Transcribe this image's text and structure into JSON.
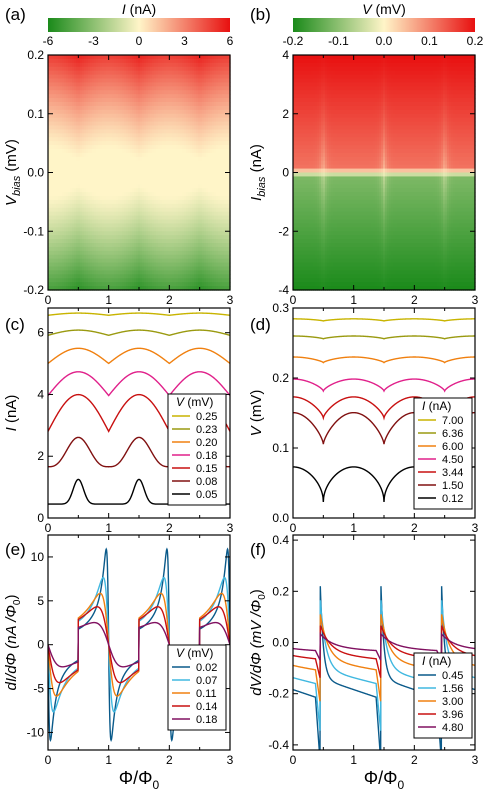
{
  "chart_data": [
    {
      "id": "a",
      "type": "heatmap",
      "panel_label": "(a)",
      "colorbar": {
        "label_var": "I",
        "label_unit": " (nA)",
        "min": -6,
        "max": 6,
        "ticks": [
          "-6",
          "-3",
          "0",
          "3",
          "6"
        ],
        "colors": [
          "#1a8a1a",
          "#fff5c8",
          "#e81010"
        ]
      },
      "xlim": [
        0,
        3
      ],
      "ylim": [
        -0.2,
        0.2
      ],
      "xticks": [
        "0",
        "1",
        "2",
        "3"
      ],
      "yticks": [
        "-0.2",
        "-0.1",
        "0.0",
        "0.1",
        "0.2"
      ],
      "ylabel_var": "V",
      "ylabel_sub": "bias",
      "ylabel_unit": " (mV)"
    },
    {
      "id": "b",
      "type": "heatmap",
      "panel_label": "(b)",
      "colorbar": {
        "label_var": "V",
        "label_unit": " (mV)",
        "min": -0.2,
        "max": 0.2,
        "ticks": [
          "-0.2",
          "-0.1",
          "0.0",
          "0.1",
          "0.2"
        ],
        "colors": [
          "#1a8a1a",
          "#fff5c8",
          "#e81010"
        ]
      },
      "xlim": [
        0,
        3
      ],
      "ylim": [
        -4,
        4
      ],
      "xticks": [
        "0",
        "1",
        "2",
        "3"
      ],
      "yticks": [
        "-4",
        "-2",
        "0",
        "2",
        "4"
      ],
      "ylabel_var": "I",
      "ylabel_sub": "bias",
      "ylabel_unit": " (nA)"
    },
    {
      "id": "c",
      "type": "line",
      "panel_label": "(c)",
      "xlim": [
        0,
        3
      ],
      "ylim": [
        0,
        6.8
      ],
      "xticks": [
        "0",
        "1",
        "2",
        "3"
      ],
      "yticks": [
        "0",
        "2",
        "4",
        "6"
      ],
      "ylabel_var": "I",
      "ylabel_unit": " (nA)",
      "legend": {
        "title_var": "V",
        "title_unit": " (mV)",
        "position": "bottom-right"
      },
      "series": [
        {
          "name": "0.25",
          "color": "#c8b400",
          "base": 6.6,
          "amp": 0.05
        },
        {
          "name": "0.23",
          "color": "#9a9a10",
          "base": 6.0,
          "amp": 0.12
        },
        {
          "name": "0.20",
          "color": "#f08010",
          "base": 5.25,
          "amp": 0.35
        },
        {
          "name": "0.18",
          "color": "#e0208a",
          "base": 4.35,
          "amp": 0.55
        },
        {
          "name": "0.15",
          "color": "#c81010",
          "base": 3.4,
          "amp": 0.85
        },
        {
          "name": "0.08",
          "color": "#801010",
          "base": 1.85,
          "amp": 0.95
        },
        {
          "name": "0.05",
          "color": "#000000",
          "base": 0.45,
          "amp": 0.8
        }
      ]
    },
    {
      "id": "d",
      "type": "line",
      "panel_label": "(d)",
      "xlim": [
        0,
        3
      ],
      "ylim": [
        0,
        0.3
      ],
      "xticks": [
        "0",
        "1",
        "2",
        "3"
      ],
      "yticks": [
        "0.0",
        "0.1",
        "0.2",
        "0.3"
      ],
      "ylabel_var": "V",
      "ylabel_unit": " (mV)",
      "legend": {
        "title_var": "I",
        "title_unit": " (nA)",
        "position": "bottom-right"
      },
      "series": [
        {
          "name": "7.00",
          "color": "#c8b400",
          "base": 0.283,
          "amp": 0.003
        },
        {
          "name": "6.36",
          "color": "#9a9a10",
          "base": 0.258,
          "amp": 0.004
        },
        {
          "name": "6.00",
          "color": "#f08010",
          "base": 0.226,
          "amp": 0.008
        },
        {
          "name": "4.50",
          "color": "#e0208a",
          "base": 0.19,
          "amp": 0.017
        },
        {
          "name": "3.44",
          "color": "#c81010",
          "base": 0.158,
          "amp": 0.03
        },
        {
          "name": "1.50",
          "color": "#801010",
          "base": 0.128,
          "amp": 0.045
        },
        {
          "name": "0.12",
          "color": "#000000",
          "base": 0.048,
          "amp": 0.05
        }
      ]
    },
    {
      "id": "e",
      "type": "line",
      "panel_label": "(e)",
      "xlim": [
        0,
        3
      ],
      "ylim": [
        -12,
        12.5
      ],
      "xticks": [
        "0",
        "1",
        "2",
        "3"
      ],
      "yticks": [
        "-10",
        "-5",
        "0",
        "5",
        "10"
      ],
      "xlabel": "Φ/Φ",
      "xlabel_sub": "0",
      "ylabel_text": "dI/dΦ (nA /Φ",
      "ylabel_sub": "0",
      "ylabel_tail": ")",
      "legend": {
        "title_var": "V",
        "title_unit": " (mV)",
        "position": "bottom-right"
      },
      "series": [
        {
          "name": "0.02",
          "color": "#0a5a8a",
          "amp": 11.5
        },
        {
          "name": "0.07",
          "color": "#40b8e0",
          "amp": 8.5
        },
        {
          "name": "0.11",
          "color": "#f08010",
          "amp": 6.5
        },
        {
          "name": "0.14",
          "color": "#c81010",
          "amp": 4.8
        },
        {
          "name": "0.18",
          "color": "#801060",
          "amp": 2.8
        }
      ]
    },
    {
      "id": "f",
      "type": "line",
      "panel_label": "(f)",
      "xlim": [
        0,
        3
      ],
      "ylim": [
        -0.42,
        0.42
      ],
      "xticks": [
        "0",
        "1",
        "2",
        "3"
      ],
      "yticks": [
        "-0.4",
        "-0.2",
        "0.0",
        "0.2",
        "0.4"
      ],
      "xlabel": "Φ/Φ",
      "xlabel_sub": "0",
      "ylabel_text": "dV/dΦ (mV /Φ",
      "ylabel_sub": "0",
      "ylabel_tail": ")",
      "legend": {
        "title_var": "I",
        "title_unit": " (nA)",
        "position": "bottom-right"
      },
      "series": [
        {
          "name": "0.45",
          "color": "#0a5a8a",
          "amp": 0.4
        },
        {
          "name": "1.56",
          "color": "#40b8e0",
          "amp": 0.3
        },
        {
          "name": "3.00",
          "color": "#f08010",
          "amp": 0.2
        },
        {
          "name": "3.96",
          "color": "#c81010",
          "amp": 0.12
        },
        {
          "name": "4.80",
          "color": "#801060",
          "amp": 0.06
        }
      ]
    }
  ]
}
